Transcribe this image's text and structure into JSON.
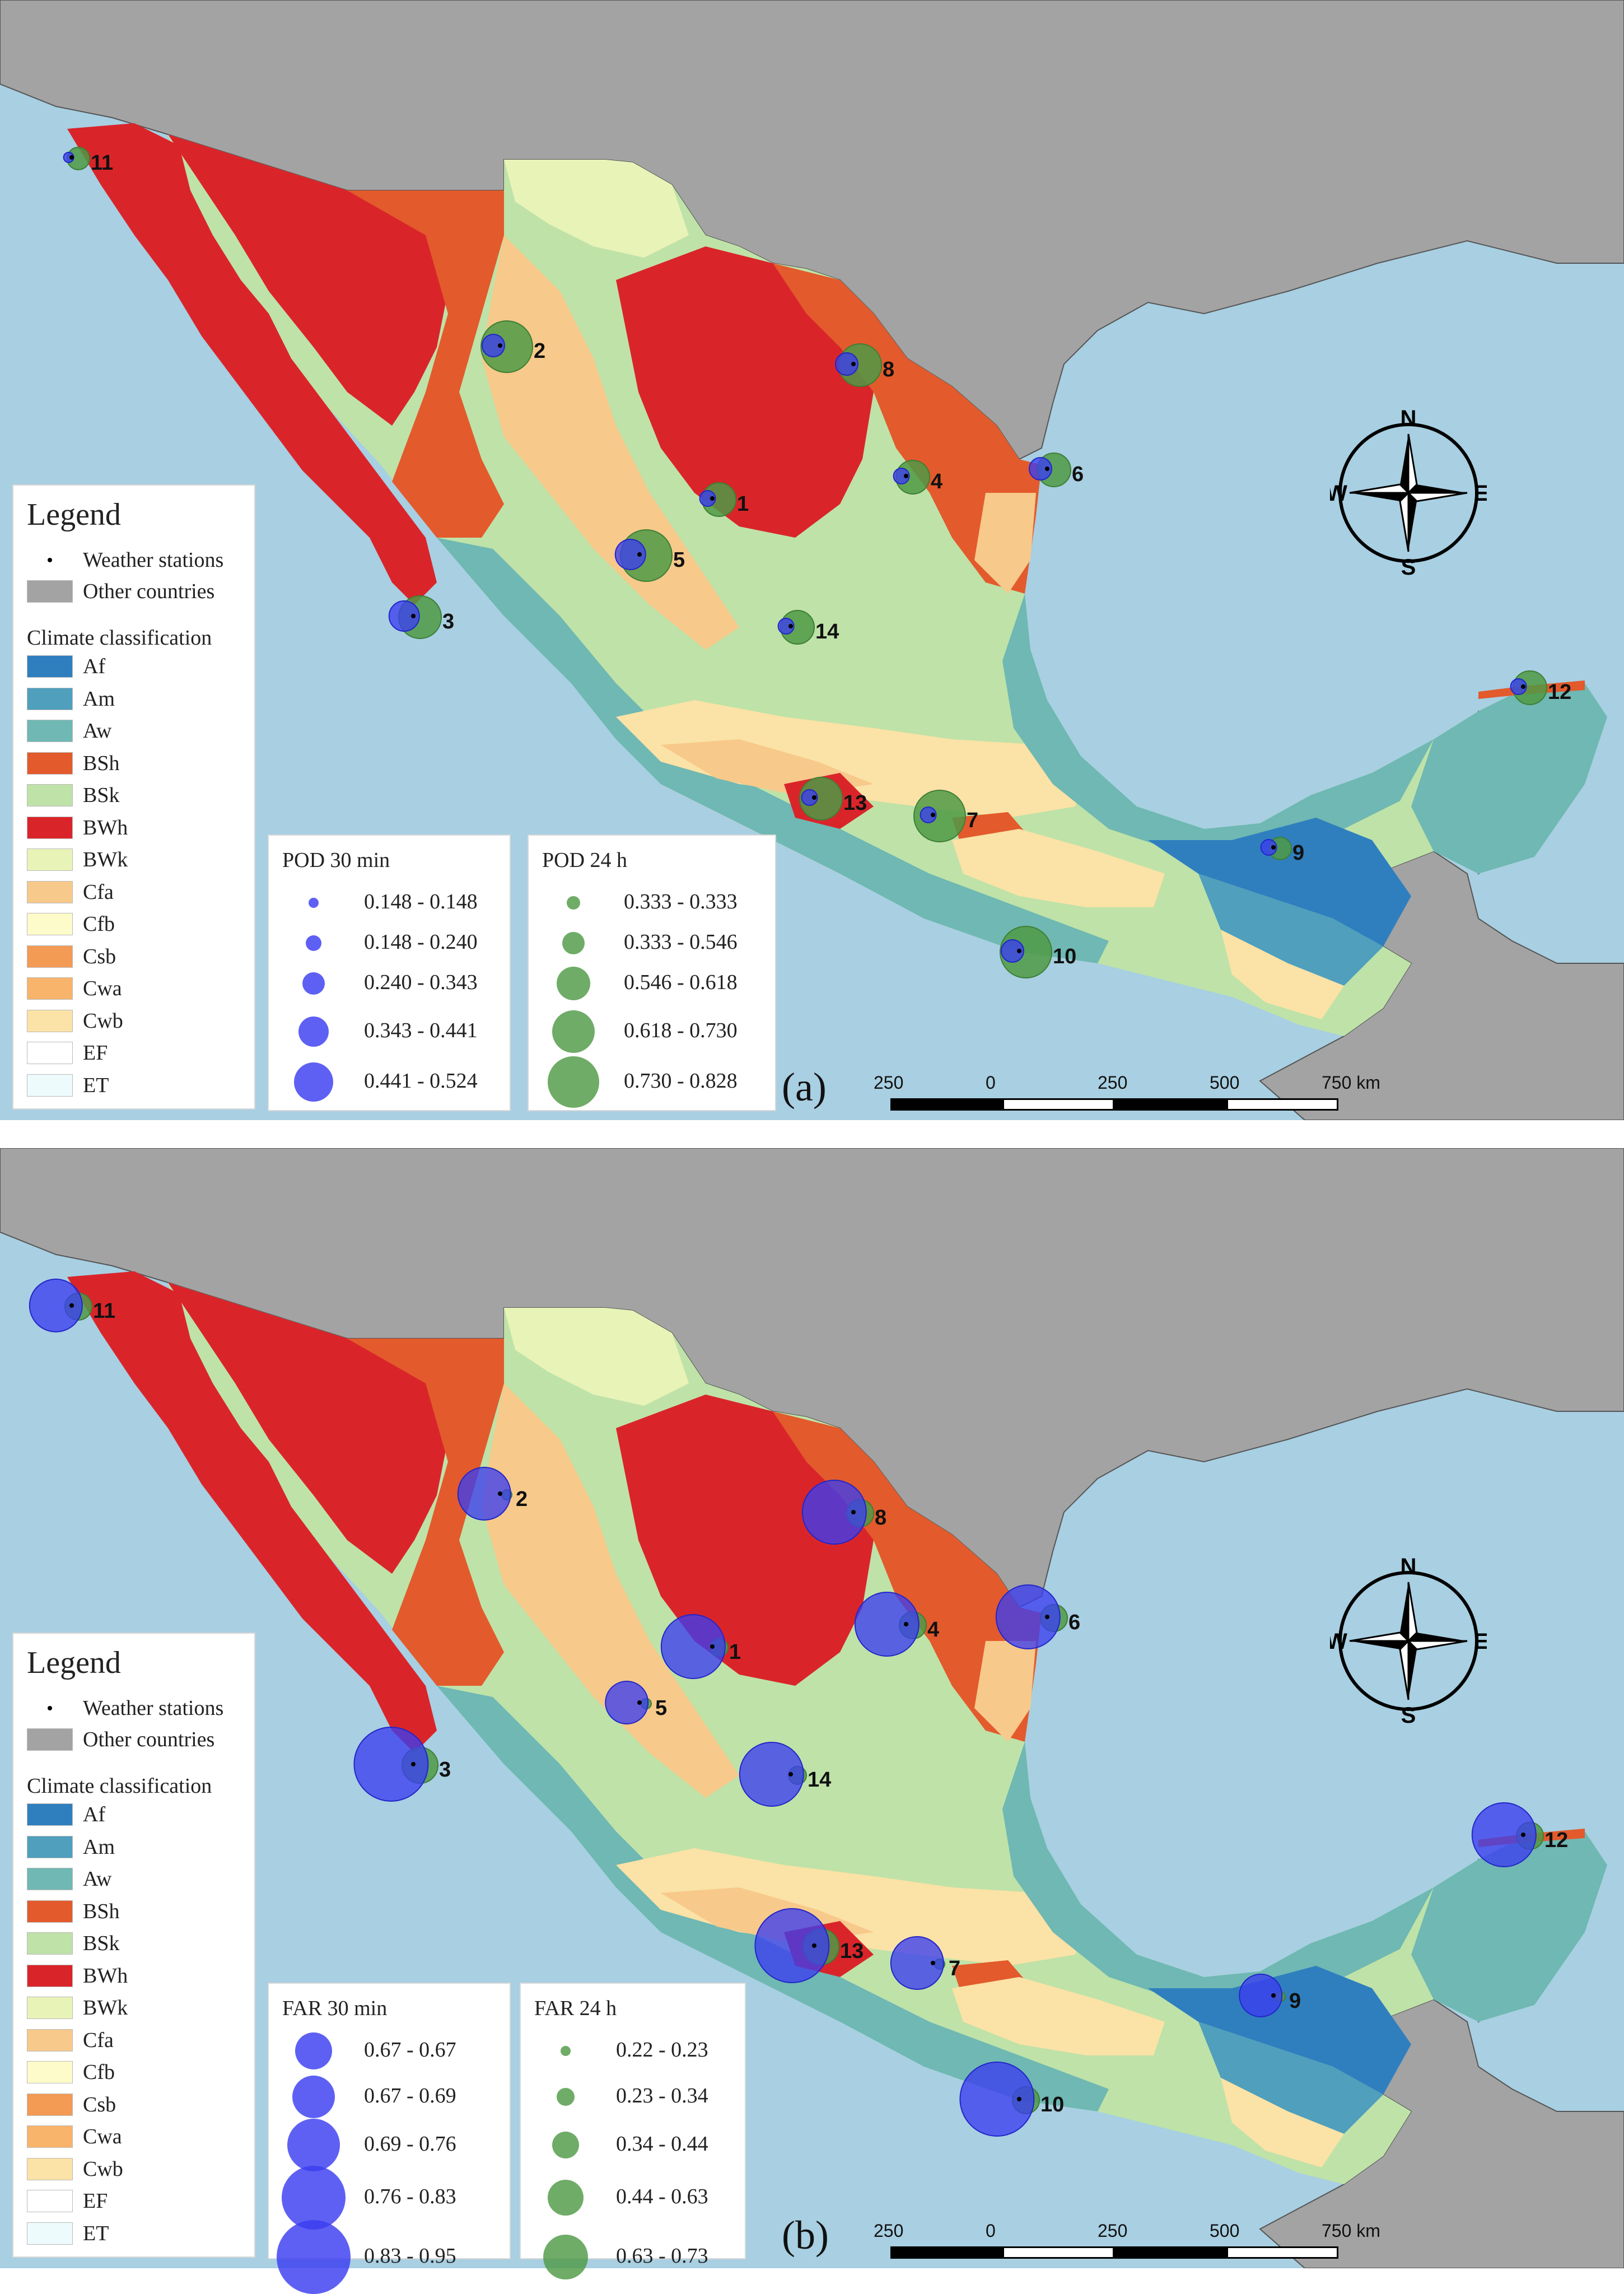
{
  "legend": {
    "title": "Legend",
    "weather_stations": "Weather stations",
    "other_countries": "Other countries",
    "climate_title": "Climate classification",
    "climate_classes": [
      {
        "code": "Af",
        "color": "#2f7fbf"
      },
      {
        "code": "Am",
        "color": "#4f9fbd"
      },
      {
        "code": "Aw",
        "color": "#6fb8b3"
      },
      {
        "code": "BSh",
        "color": "#e35a2c"
      },
      {
        "code": "BSk",
        "color": "#bfe2a8"
      },
      {
        "code": "BWh",
        "color": "#d9252a"
      },
      {
        "code": "BWk",
        "color": "#e8f3b8"
      },
      {
        "code": "Cfa",
        "color": "#f7c98a"
      },
      {
        "code": "Cfb",
        "color": "#fdfbc9"
      },
      {
        "code": "Csb",
        "color": "#f39a55"
      },
      {
        "code": "Cwa",
        "color": "#f7b46a"
      },
      {
        "code": "Cwb",
        "color": "#fbe2a6"
      },
      {
        "code": "EF",
        "color": "#ffffff"
      },
      {
        "code": "ET",
        "color": "#eefbfd"
      }
    ]
  },
  "colors": {
    "sea": "#a8cfe2",
    "other_countries": "#a3a3a3",
    "blue_symbol": "#3b3df0",
    "green_symbol": "#4f9a45"
  },
  "panels": [
    {
      "letter": "(a)",
      "blue_legend": {
        "title": "POD 30 min",
        "ranges": [
          "0.148 - 0.148",
          "0.148 - 0.240",
          "0.240 - 0.343",
          "0.343 - 0.441",
          "0.441 - 0.524"
        ]
      },
      "green_legend": {
        "title": "POD 24 h",
        "ranges": [
          "0.333 - 0.333",
          "0.333 - 0.546",
          "0.546 - 0.618",
          "0.618 - 0.730",
          "0.730 - 0.828"
        ]
      },
      "stations": [
        {
          "id": "1",
          "blue_class": 2,
          "green_class": 3
        },
        {
          "id": "2",
          "blue_class": 3,
          "green_class": 5
        },
        {
          "id": "3",
          "blue_class": 4,
          "green_class": 4
        },
        {
          "id": "4",
          "blue_class": 2,
          "green_class": 3
        },
        {
          "id": "5",
          "blue_class": 4,
          "green_class": 5
        },
        {
          "id": "6",
          "blue_class": 3,
          "green_class": 3
        },
        {
          "id": "7",
          "blue_class": 2,
          "green_class": 5
        },
        {
          "id": "8",
          "blue_class": 3,
          "green_class": 4
        },
        {
          "id": "9",
          "blue_class": 2,
          "green_class": 2
        },
        {
          "id": "10",
          "blue_class": 3,
          "green_class": 5
        },
        {
          "id": "11",
          "blue_class": 1,
          "green_class": 2
        },
        {
          "id": "12",
          "blue_class": 2,
          "green_class": 3
        },
        {
          "id": "13",
          "blue_class": 2,
          "green_class": 4
        },
        {
          "id": "14",
          "blue_class": 2,
          "green_class": 3
        }
      ]
    },
    {
      "letter": "(b)",
      "blue_legend": {
        "title": "FAR 30 min",
        "ranges": [
          "0.67 - 0.67",
          "0.67 - 0.69",
          "0.69 - 0.76",
          "0.76 - 0.83",
          "0.83 - 0.95"
        ]
      },
      "green_legend": {
        "title": "FAR 24 h",
        "ranges": [
          "0.22 - 0.23",
          "0.23 - 0.34",
          "0.34 - 0.44",
          "0.44 - 0.63",
          "0.63 - 0.73"
        ]
      },
      "stations": [
        {
          "id": "1",
          "blue_class": 4,
          "green_class": 2
        },
        {
          "id": "2",
          "blue_class": 3,
          "green_class": 1
        },
        {
          "id": "3",
          "blue_class": 5,
          "green_class": 4
        },
        {
          "id": "4",
          "blue_class": 4,
          "green_class": 3
        },
        {
          "id": "5",
          "blue_class": 2,
          "green_class": 1
        },
        {
          "id": "6",
          "blue_class": 4,
          "green_class": 3
        },
        {
          "id": "7",
          "blue_class": 3,
          "green_class": 1
        },
        {
          "id": "8",
          "blue_class": 4,
          "green_class": 3
        },
        {
          "id": "9",
          "blue_class": 2,
          "green_class": 1
        },
        {
          "id": "10",
          "blue_class": 5,
          "green_class": 3
        },
        {
          "id": "11",
          "blue_class": 3,
          "green_class": 3
        },
        {
          "id": "12",
          "blue_class": 4,
          "green_class": 3
        },
        {
          "id": "13",
          "blue_class": 5,
          "green_class": 4
        },
        {
          "id": "14",
          "blue_class": 4,
          "green_class": 2
        }
      ]
    }
  ],
  "scale": {
    "labels": [
      "250",
      "0",
      "250",
      "500",
      "750 km"
    ]
  },
  "compass": {
    "n": "N",
    "s": "S",
    "e": "E",
    "w": "W"
  }
}
